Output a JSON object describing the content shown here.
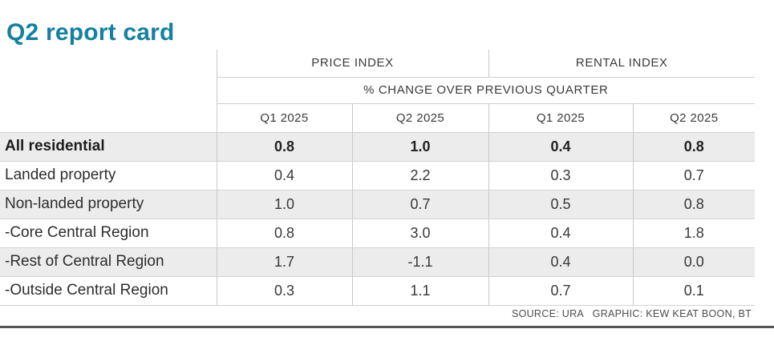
{
  "title": "Q2 report card",
  "colors": {
    "title_teal": "#1580a0",
    "row_stripe": "#ececec",
    "grid_line": "#c9c9c9",
    "bottom_rule": "#555555"
  },
  "chart_data": {
    "type": "table",
    "title": "Q2 report card",
    "column_groups": {
      "price": "PRICE INDEX",
      "rental": "RENTAL INDEX"
    },
    "subheader": "% CHANGE OVER PREVIOUS QUARTER",
    "columns": [
      "Q1 2025",
      "Q2 2025",
      "Q1 2025",
      "Q2 2025"
    ],
    "rows": [
      {
        "label": "All residential",
        "bold": true,
        "values": [
          "0.8",
          "1.0",
          "0.4",
          "0.8"
        ]
      },
      {
        "label": "Landed property",
        "bold": false,
        "values": [
          "0.4",
          "2.2",
          "0.3",
          "0.7"
        ]
      },
      {
        "label": "Non-landed property",
        "bold": false,
        "values": [
          "1.0",
          "0.7",
          "0.5",
          "0.8"
        ]
      },
      {
        "label": "-Core Central Region",
        "bold": false,
        "values": [
          "0.8",
          "3.0",
          "0.4",
          "1.8"
        ]
      },
      {
        "label": "-Rest of Central Region",
        "bold": false,
        "values": [
          "1.7",
          "-1.1",
          "0.4",
          "0.0"
        ]
      },
      {
        "label": "-Outside Central Region",
        "bold": false,
        "values": [
          "0.3",
          "1.1",
          "0.7",
          "0.1"
        ]
      }
    ],
    "source": "SOURCE: URA   GRAPHIC: KEW KEAT BOON, BT",
    "layout": {
      "legend": "none",
      "grid": "light-horizontal-and-vertical",
      "stripe_rows": [
        0,
        2,
        4
      ]
    }
  }
}
